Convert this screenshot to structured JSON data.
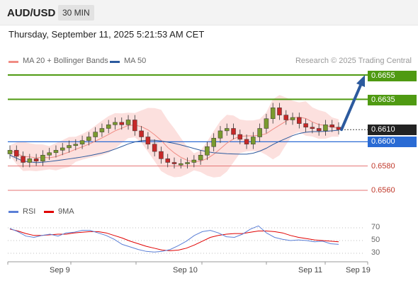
{
  "header": {
    "symbol": "AUD/USD",
    "timeframe": "30 MIN",
    "datetime": "Thursday, September 11, 2025 5:21:53 AM CET"
  },
  "legend": {
    "ma20_label": "MA 20 + Bollinger Bands",
    "ma20_color": "#f08c84",
    "ma50_label": "MA 50",
    "ma50_color": "#2c5a9e",
    "credit": "Research © 2025 Trading Central"
  },
  "chart_data": {
    "type": "candlestick",
    "instrument": "AUD/USD",
    "timeframe": "30 MIN",
    "y_range": [
      0.6546,
      0.6663
    ],
    "x_labels": [
      "Sep 9",
      "Sep 10",
      "Sep 11",
      "Sep 19"
    ],
    "last_price": "0.6610",
    "target_levels": [
      "0.6655",
      "0.6635"
    ],
    "pivot_level": "0.6600",
    "support_levels": [
      "0.6580",
      "0.6560"
    ],
    "projection": {
      "from": 0.661,
      "to": 0.6655
    },
    "closes": [
      0.6593,
      0.6588,
      0.6583,
      0.6586,
      0.6584,
      0.6589,
      0.6591,
      0.6593,
      0.6595,
      0.6597,
      0.6598,
      0.6601,
      0.6604,
      0.6608,
      0.6611,
      0.6614,
      0.6616,
      0.6614,
      0.6618,
      0.6609,
      0.6604,
      0.6598,
      0.6592,
      0.6586,
      0.6583,
      0.6582,
      0.6582,
      0.6583,
      0.6585,
      0.6589,
      0.6596,
      0.6603,
      0.6609,
      0.6611,
      0.6606,
      0.6602,
      0.6598,
      0.6604,
      0.6611,
      0.6619,
      0.6628,
      0.6622,
      0.6618,
      0.662,
      0.6615,
      0.6612,
      0.6611,
      0.6609,
      0.6614,
      0.6612,
      0.661
    ],
    "colors": {
      "bull": "#7a9a2e",
      "bear": "#c62828"
    },
    "rsi": {
      "levels": [
        70,
        50,
        30
      ],
      "rsi_label": "RSI",
      "rsi_color": "#5b7fd6",
      "rsi_values": [
        69,
        64,
        57,
        55,
        58,
        60,
        57,
        62,
        63,
        66,
        66,
        62,
        58,
        52,
        44,
        40,
        36,
        33,
        32,
        33,
        36,
        42,
        49,
        58,
        64,
        66,
        62,
        56,
        55,
        60,
        68,
        73,
        62,
        55,
        52,
        50,
        51,
        50,
        48,
        49,
        45,
        44
      ],
      "ma_label": "9MA",
      "ma_color": "#e00000",
      "ma_values": [
        68,
        65,
        61,
        58,
        58,
        59,
        60,
        60,
        62,
        63,
        64,
        64,
        62,
        58,
        54,
        49,
        45,
        41,
        38,
        35,
        34,
        35,
        38,
        43,
        49,
        55,
        58,
        60,
        61,
        61,
        63,
        65,
        65,
        64,
        62,
        58,
        55,
        53,
        51,
        50,
        49,
        48
      ]
    }
  }
}
